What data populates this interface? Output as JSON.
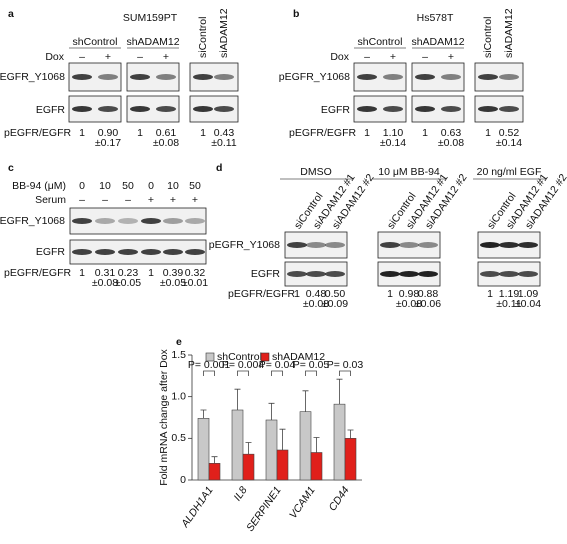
{
  "panels": [
    {
      "label": "a",
      "title": "SUM159PT",
      "groups": [
        "shControl",
        "shADAM12"
      ],
      "treatment": "Dox",
      "treatment_levels": [
        "–",
        "+",
        "–",
        "+"
      ],
      "lanes": [
        "siControl",
        "siADAM12"
      ],
      "rows": [
        "pEGFR_Y1068",
        "EGFR"
      ],
      "ratio_label": "pEGFR/EGFR",
      "ratios": [
        {
          "mean": "1"
        },
        {
          "mean": "0.90",
          "sd": "±0.17"
        },
        {
          "mean": "1"
        },
        {
          "mean": "0.61",
          "sd": "±0.08",
          "color": "#e0201b"
        },
        {
          "mean": "1"
        },
        {
          "mean": "0.43",
          "sd": "±0.11",
          "color": "#e0201b"
        }
      ]
    },
    {
      "label": "b",
      "title": "Hs578T",
      "groups": [
        "shControl",
        "shADAM12"
      ],
      "treatment": "Dox",
      "treatment_levels": [
        "–",
        "+",
        "–",
        "+"
      ],
      "lanes": [
        "siControl",
        "siADAM12"
      ],
      "rows": [
        "pEGFR_Y1068",
        "EGFR"
      ],
      "ratio_label": "pEGFR/EGFR",
      "ratios": [
        {
          "mean": "1"
        },
        {
          "mean": "1.10",
          "sd": "±0.14"
        },
        {
          "mean": "1"
        },
        {
          "mean": "0.63",
          "sd": "±0.08",
          "color": "#e0201b"
        },
        {
          "mean": "1"
        },
        {
          "mean": "0.52",
          "sd": "±0.14",
          "color": "#e0201b"
        }
      ]
    },
    {
      "label": "c",
      "treatments": [
        {
          "name": "BB-94 (μM)",
          "levels": [
            "0",
            "10",
            "50",
            "0",
            "10",
            "50"
          ]
        },
        {
          "name": "Serum",
          "levels": [
            "–",
            "–",
            "–",
            "+",
            "+",
            "+"
          ]
        }
      ],
      "rows": [
        "pEGFR_Y1068",
        "EGFR"
      ],
      "ratio_label": "pEGFR/EGFR",
      "ratios": [
        {
          "mean": "1"
        },
        {
          "mean": "0.31",
          "sd": "±0.08",
          "color": "#e0201b"
        },
        {
          "mean": "0.23",
          "sd": "±0.05",
          "color": "#e0201b"
        },
        {
          "mean": "1"
        },
        {
          "mean": "0.39",
          "sd": "±0.05",
          "color": "#e0201b"
        },
        {
          "mean": "0.32",
          "sd": "±0.01",
          "color": "#e0201b"
        }
      ]
    },
    {
      "label": "d",
      "rows": [
        "pEGFR_Y1068",
        "EGFR"
      ],
      "ratio_label": "pEGFR/EGFR",
      "groups": [
        {
          "name": "DMSO",
          "lanes": [
            "siControl",
            "siADAM12 #1",
            "siADAM12 #2"
          ],
          "ratios": [
            {
              "mean": "1"
            },
            {
              "mean": "0.48",
              "sd": "±0.08",
              "color": "#e0201b"
            },
            {
              "mean": "0.50",
              "sd": "±0.09",
              "color": "#e0201b"
            }
          ]
        },
        {
          "name": "10 μM BB-94",
          "lanes": [
            "siControl",
            "siADAM12 #1",
            "siADAM12 #2"
          ],
          "ratios": [
            {
              "mean": "1"
            },
            {
              "mean": "0.98",
              "sd": "±0.08"
            },
            {
              "mean": "0.88",
              "sd": "±0.06"
            }
          ]
        },
        {
          "name": "20 ng/ml EGF",
          "lanes": [
            "siControl",
            "siADAM12 #1",
            "siADAM12 #2"
          ],
          "ratios": [
            {
              "mean": "1"
            },
            {
              "mean": "1.19",
              "sd": "±0.11"
            },
            {
              "mean": "1.09",
              "sd": "±0.04"
            }
          ]
        }
      ]
    }
  ],
  "chart_data": {
    "type": "bar",
    "label": "e",
    "y_label": "Fold mRNA change after Dox",
    "categories": [
      "ALDH1A1",
      "IL8",
      "SERPINE1",
      "VCAM1",
      "CD44"
    ],
    "series": [
      {
        "name": "shControl",
        "color": "#c8c8c8",
        "values": [
          0.74,
          0.84,
          0.72,
          0.82,
          0.91
        ],
        "errors": [
          0.1,
          0.25,
          0.2,
          0.25,
          0.3
        ]
      },
      {
        "name": "shADAM12",
        "color": "#e0201b",
        "values": [
          0.2,
          0.31,
          0.36,
          0.33,
          0.5
        ],
        "errors": [
          0.08,
          0.14,
          0.25,
          0.18,
          0.1
        ]
      }
    ],
    "annotations": [
      "P= 0.001",
      "P= 0.004",
      "P= 0.04",
      "P= 0.05",
      "P= 0.03"
    ],
    "ylim": [
      0,
      1.5
    ],
    "yticks": [
      0,
      0.5,
      {
        "value": 1,
        "label": "1.0"
      },
      1.5
    ],
    "legend": "top"
  }
}
